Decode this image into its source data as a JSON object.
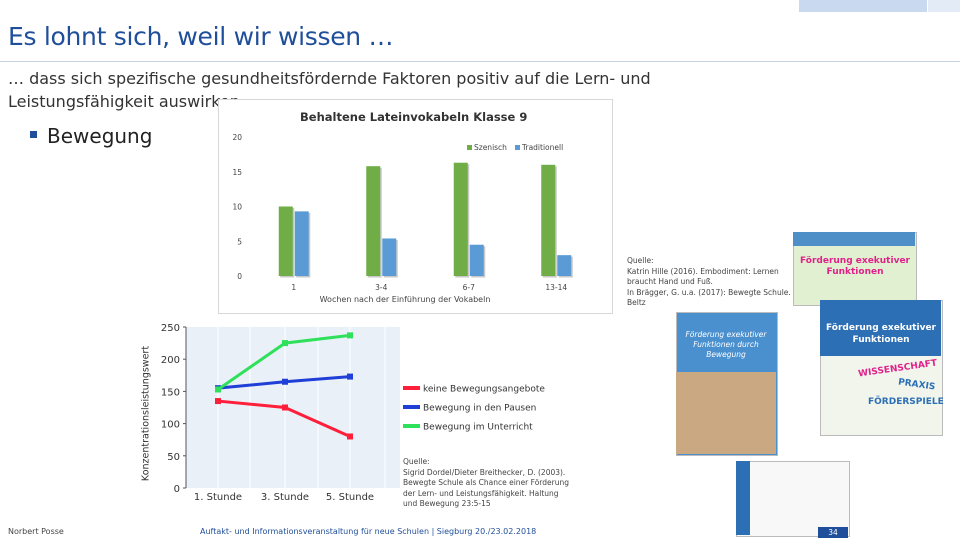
{
  "header": {
    "title": "Es lohnt sich, weil wir wissen …",
    "subtitle_line1": "… dass sich spezifische gesundheitsfördernde Faktoren positiv auf die Lern- und",
    "subtitle_line2": "Leistungsfähigkeit auswirken",
    "bullet": "Bewegung"
  },
  "colors": {
    "accent": "#1f4e9a",
    "green": "#70ad47",
    "blue": "#5b9bd5"
  },
  "chart_data": [
    {
      "type": "bar",
      "title": "Behaltene Lateinvokabeln Klasse 9",
      "xlabel": "Wochen nach der Einführung der Vokabeln",
      "ylabel": "",
      "ylim": [
        0,
        20
      ],
      "yticks": [
        "0",
        "5",
        "10",
        "15",
        "20"
      ],
      "categories": [
        "1",
        "3-4",
        "6-7",
        "13-14"
      ],
      "series": [
        {
          "name": "Szenisch",
          "color": "#70ad47",
          "values": [
            10,
            15.8,
            16.3,
            16
          ]
        },
        {
          "name": "Traditionell",
          "color": "#5b9bd5",
          "values": [
            9.3,
            5.4,
            4.5,
            3
          ]
        }
      ],
      "legend": "top-right"
    },
    {
      "type": "line",
      "title": "",
      "xlabel": "",
      "ylabel": "Konzentrationsleistungswert",
      "ylim": [
        0,
        250
      ],
      "yticks": [
        "0",
        "50",
        "100",
        "150",
        "200",
        "250"
      ],
      "categories": [
        "1. Stunde",
        "3. Stunde",
        "5. Stunde"
      ],
      "series": [
        {
          "name": "keine Bewegungsangebote",
          "color": "#ff1f3a",
          "values": [
            135,
            125,
            80
          ]
        },
        {
          "name": "Bewegung in den Pausen",
          "color": "#1f3fd6",
          "values": [
            155,
            165,
            173
          ]
        },
        {
          "name": "Bewegung im Unterricht",
          "color": "#2ee05a",
          "values": [
            153,
            225,
            237
          ]
        }
      ]
    }
  ],
  "sources": {
    "top_right": [
      "Quelle:",
      "Katrin Hille (2016). Embodiment: Lernen",
      "braucht Hand und Fuß.",
      "In Brägger, G. u.a. (2017): Bewegte Schule.",
      "Beltz"
    ],
    "bottom": [
      "Quelle:",
      "Sigrid Dordel/Dieter Breithecker, D. (2003).",
      "Bewegte Schule als Chance einer Förderung",
      "der Lern- und Leistungsfähigkeit. Haltung",
      "und Bewegung 23:5-15"
    ]
  },
  "books": {
    "book1_title": "Förderung exekutiver Funktionen",
    "book2_title": "Förderung exekutiver Funktionen",
    "book2_tags": [
      "WISSENSCHAFT",
      "PRAXIS",
      "FÖRDERSPIELE"
    ],
    "book3_title": "Förderung exekutiver Funktionen durch Bewegung"
  },
  "footer": {
    "author": "Norbert Posse",
    "event": "Auftakt- und Informationsveranstaltung für neue Schulen | Siegburg 20./23.02.2018",
    "page": "34"
  }
}
